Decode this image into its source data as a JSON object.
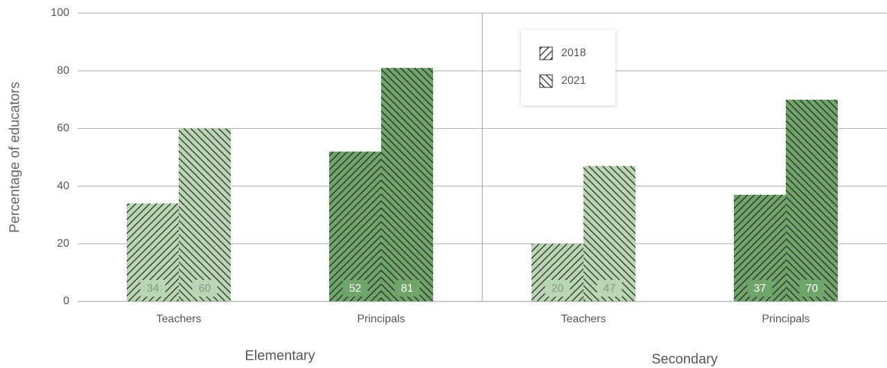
{
  "chart_data": {
    "type": "bar",
    "y_label": "Percentage of educators",
    "groups": [
      "Elementary",
      "Secondary"
    ],
    "categories": [
      "Teachers",
      "Principals",
      "Teachers",
      "Principals"
    ],
    "category_colors": [
      "#b9d6b3",
      "#6fa46b",
      "#b9d6b3",
      "#6fa46b"
    ],
    "value_label_colors": [
      "#8c948a",
      "#ffffff",
      "#8c948a",
      "#ffffff"
    ],
    "series": [
      {
        "name": "2018",
        "hatch": "forward",
        "values": [
          34,
          52,
          20,
          37
        ]
      },
      {
        "name": "2021",
        "hatch": "back",
        "values": [
          60,
          81,
          47,
          70
        ]
      }
    ],
    "ylim": [
      0,
      100
    ],
    "yticks": [
      0,
      20,
      40,
      60,
      80,
      100
    ],
    "grid": true,
    "legend": "top"
  }
}
